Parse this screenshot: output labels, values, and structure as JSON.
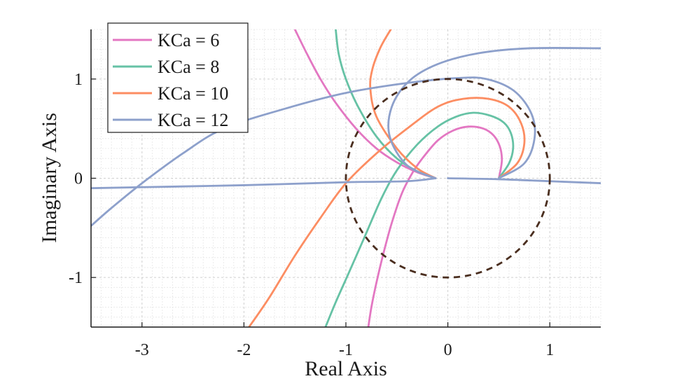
{
  "chart_data": {
    "type": "line",
    "title": "",
    "xlabel": "Real Axis",
    "ylabel": "Imaginary Axis",
    "xlim": [
      -3.5,
      1.5
    ],
    "ylim": [
      -1.5,
      1.5
    ],
    "x_ticks": [
      -3,
      -2,
      -1,
      0,
      1
    ],
    "y_ticks": [
      -1,
      0,
      1
    ],
    "x_tick_labels": [
      "-3",
      "-2",
      "-1",
      "0",
      "1"
    ],
    "y_tick_labels": [
      "-1",
      "0",
      "1"
    ],
    "grid": true,
    "legend_position": "top-left",
    "series": [
      {
        "name": "KCa = 6",
        "color": "#e377c2",
        "branches": [
          [
            [
              0.5,
              0.0
            ],
            [
              0.52,
              0.1
            ],
            [
              0.53,
              0.2
            ],
            [
              0.51,
              0.32
            ],
            [
              0.45,
              0.43
            ],
            [
              0.35,
              0.5
            ],
            [
              0.2,
              0.52
            ],
            [
              0.05,
              0.48
            ],
            [
              -0.1,
              0.38
            ],
            [
              -0.25,
              0.2
            ],
            [
              -0.35,
              0.05
            ],
            [
              -0.45,
              -0.15
            ],
            [
              -0.55,
              -0.45
            ],
            [
              -0.63,
              -0.75
            ],
            [
              -0.7,
              -1.05
            ],
            [
              -0.75,
              -1.3
            ],
            [
              -0.78,
              -1.5
            ]
          ],
          [
            [
              -0.12,
              0.0
            ],
            [
              -0.3,
              0.06
            ],
            [
              -0.5,
              0.16
            ],
            [
              -0.7,
              0.3
            ],
            [
              -0.9,
              0.5
            ],
            [
              -1.1,
              0.76
            ],
            [
              -1.25,
              1.0
            ],
            [
              -1.38,
              1.25
            ],
            [
              -1.5,
              1.5
            ]
          ]
        ]
      },
      {
        "name": "KCa = 8",
        "color": "#66c2a5",
        "branches": [
          [
            [
              0.5,
              0.0
            ],
            [
              0.6,
              0.15
            ],
            [
              0.64,
              0.3
            ],
            [
              0.62,
              0.45
            ],
            [
              0.55,
              0.56
            ],
            [
              0.42,
              0.63
            ],
            [
              0.25,
              0.66
            ],
            [
              0.08,
              0.62
            ],
            [
              -0.1,
              0.52
            ],
            [
              -0.3,
              0.34
            ],
            [
              -0.5,
              0.08
            ],
            [
              -0.65,
              -0.2
            ],
            [
              -0.82,
              -0.6
            ],
            [
              -0.97,
              -0.95
            ],
            [
              -1.1,
              -1.25
            ],
            [
              -1.2,
              -1.5
            ]
          ],
          [
            [
              -0.12,
              0.0
            ],
            [
              -0.3,
              0.07
            ],
            [
              -0.5,
              0.2
            ],
            [
              -0.7,
              0.42
            ],
            [
              -0.88,
              0.72
            ],
            [
              -1.0,
              1.0
            ],
            [
              -1.07,
              1.25
            ],
            [
              -1.1,
              1.5
            ]
          ]
        ]
      },
      {
        "name": "KCa = 10",
        "color": "#fc8d62",
        "branches": [
          [
            [
              0.5,
              0.0
            ],
            [
              0.68,
              0.15
            ],
            [
              0.75,
              0.35
            ],
            [
              0.72,
              0.55
            ],
            [
              0.6,
              0.72
            ],
            [
              0.4,
              0.8
            ],
            [
              0.15,
              0.8
            ],
            [
              -0.1,
              0.72
            ],
            [
              -0.4,
              0.5
            ],
            [
              -0.7,
              0.25
            ],
            [
              -1.0,
              -0.05
            ],
            [
              -1.25,
              -0.4
            ],
            [
              -1.5,
              -0.78
            ],
            [
              -1.75,
              -1.2
            ],
            [
              -1.95,
              -1.5
            ]
          ],
          [
            [
              -0.12,
              0.0
            ],
            [
              -0.3,
              0.1
            ],
            [
              -0.5,
              0.3
            ],
            [
              -0.7,
              0.62
            ],
            [
              -0.76,
              0.9
            ],
            [
              -0.74,
              1.1
            ],
            [
              -0.66,
              1.32
            ],
            [
              -0.56,
              1.5
            ]
          ]
        ]
      },
      {
        "name": "KCa = 12",
        "color": "#8da0cb",
        "branches": [
          [
            [
              0.5,
              0.0
            ],
            [
              0.75,
              0.15
            ],
            [
              0.85,
              0.4
            ],
            [
              0.82,
              0.65
            ],
            [
              0.65,
              0.88
            ],
            [
              0.38,
              1.0
            ],
            [
              0.1,
              1.01
            ],
            [
              -0.4,
              0.96
            ],
            [
              -1.0,
              0.86
            ],
            [
              -1.6,
              0.7
            ],
            [
              -2.2,
              0.5
            ],
            [
              -2.6,
              0.25
            ],
            [
              -3.0,
              -0.05
            ],
            [
              -3.3,
              -0.3
            ],
            [
              -3.5,
              -0.48
            ]
          ],
          [
            [
              -0.12,
              0.0
            ],
            [
              -0.4,
              -0.03
            ],
            [
              -1.0,
              -0.04
            ],
            [
              -2.0,
              -0.07
            ],
            [
              -3.0,
              -0.09
            ],
            [
              -3.5,
              -0.1
            ]
          ],
          [
            [
              0.0,
              0.0
            ],
            [
              0.5,
              -0.01
            ],
            [
              1.0,
              -0.03
            ],
            [
              1.5,
              -0.05
            ]
          ],
          [
            [
              -0.12,
              0.0
            ],
            [
              -0.4,
              0.13
            ],
            [
              -0.57,
              0.42
            ],
            [
              -0.55,
              0.72
            ],
            [
              -0.38,
              0.98
            ],
            [
              -0.1,
              1.15
            ],
            [
              0.3,
              1.26
            ],
            [
              0.8,
              1.31
            ],
            [
              1.5,
              1.31
            ]
          ]
        ]
      }
    ],
    "reference_circle": {
      "center": [
        0,
        0
      ],
      "radius": 1,
      "color": "#4a2e1f",
      "style": "dashed"
    }
  }
}
